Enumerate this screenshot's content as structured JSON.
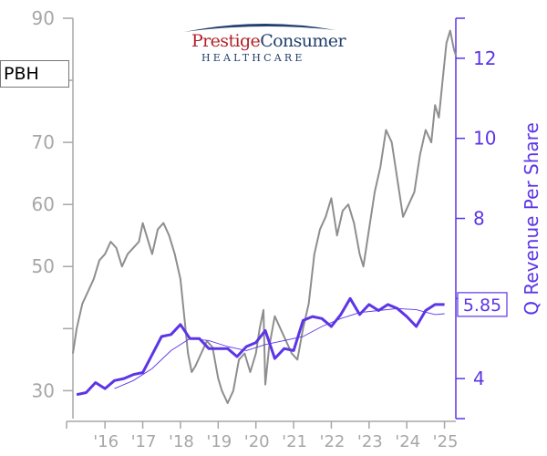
{
  "ticker": "PBH",
  "logo": {
    "name_part1": "Prestige",
    "name_part2": "Consumer",
    "subtitle": "HEALTHCARE"
  },
  "colors": {
    "price": "#8e8e8e",
    "revenue": "#5c35e6",
    "revenue_trend": "#5c35e6",
    "left_axis": "#a7a7a7",
    "bottom_axis": "#a7a7a7",
    "logo_red": "#b1232a",
    "logo_blue": "#23406e"
  },
  "chart_data": {
    "type": "line",
    "x_tick_labels": [
      "'16",
      "'17",
      "'18",
      "'19",
      "'20",
      "'21",
      "'22",
      "'23",
      "'24",
      "'25"
    ],
    "xlim": [
      2015.15,
      2025.3
    ],
    "left_axis": {
      "ticks": [
        30,
        40,
        50,
        60,
        70,
        80,
        90
      ],
      "labels": [
        "30",
        "",
        "50",
        "60",
        "70",
        "",
        "90"
      ],
      "ylim": [
        25.5,
        90
      ]
    },
    "right_axis": {
      "label": "Q Revenue Per Share",
      "ticks": [
        4,
        6,
        8,
        10,
        12
      ],
      "labels": [
        "4",
        "",
        "8",
        "10",
        "12"
      ],
      "ylim": [
        3.0,
        13.0
      ],
      "last_value_label": "5.85"
    },
    "series": [
      {
        "axis": "left",
        "x": [
          2015.15,
          2015.25,
          2015.4,
          2015.55,
          2015.7,
          2015.85,
          2016.0,
          2016.15,
          2016.3,
          2016.45,
          2016.6,
          2016.75,
          2016.9,
          2017.0,
          2017.1,
          2017.25,
          2017.4,
          2017.55,
          2017.7,
          2017.85,
          2018.0,
          2018.1,
          2018.2,
          2018.3,
          2018.4,
          2018.55,
          2018.7,
          2018.85,
          2019.0,
          2019.1,
          2019.25,
          2019.4,
          2019.55,
          2019.7,
          2019.85,
          2020.0,
          2020.1,
          2020.2,
          2020.25,
          2020.35,
          2020.5,
          2020.65,
          2020.8,
          2020.95,
          2021.1,
          2021.25,
          2021.4,
          2021.55,
          2021.7,
          2021.85,
          2022.0,
          2022.15,
          2022.3,
          2022.45,
          2022.6,
          2022.75,
          2022.85,
          2023.0,
          2023.15,
          2023.3,
          2023.45,
          2023.6,
          2023.75,
          2023.9,
          2024.05,
          2024.2,
          2024.35,
          2024.5,
          2024.65,
          2024.75,
          2024.85,
          2024.95,
          2025.05,
          2025.15,
          2025.25,
          2025.3
        ],
        "values": [
          36,
          40,
          44,
          46,
          48,
          51,
          52,
          54,
          53,
          50,
          52,
          53,
          54,
          57,
          55,
          52,
          56,
          57,
          55,
          52,
          48,
          42,
          36,
          33,
          34,
          36,
          38,
          37,
          32,
          30,
          28,
          30,
          35,
          36,
          33,
          36,
          40,
          43,
          31,
          37,
          42,
          40,
          38,
          36,
          35,
          40,
          44,
          52,
          56,
          58,
          61,
          55,
          59,
          60,
          57,
          52,
          50,
          56,
          62,
          66,
          72,
          70,
          64,
          58,
          60,
          62,
          68,
          72,
          70,
          76,
          74,
          80,
          86,
          88,
          85,
          84
        ]
      },
      {
        "axis": "right",
        "x": [
          2015.25,
          2015.5,
          2015.75,
          2016.0,
          2016.25,
          2016.5,
          2016.75,
          2017.0,
          2017.25,
          2017.5,
          2017.75,
          2018.0,
          2018.25,
          2018.5,
          2018.75,
          2019.0,
          2019.25,
          2019.5,
          2019.75,
          2020.0,
          2020.25,
          2020.5,
          2020.75,
          2021.0,
          2021.25,
          2021.5,
          2021.75,
          2022.0,
          2022.25,
          2022.5,
          2022.75,
          2023.0,
          2023.25,
          2023.5,
          2023.75,
          2024.0,
          2024.25,
          2024.5,
          2024.75,
          2025.0
        ],
        "values": [
          3.6,
          3.65,
          3.9,
          3.75,
          3.95,
          4.0,
          4.1,
          4.15,
          4.6,
          5.05,
          5.1,
          5.35,
          5.0,
          5.0,
          4.75,
          4.75,
          4.75,
          4.55,
          4.8,
          4.9,
          5.2,
          4.5,
          4.75,
          4.7,
          5.45,
          5.55,
          5.5,
          5.3,
          5.6,
          6.0,
          5.6,
          5.85,
          5.7,
          5.85,
          5.75,
          5.55,
          5.3,
          5.7,
          5.85,
          5.85
        ]
      },
      {
        "axis": "right",
        "x": [
          2016.25,
          2016.75,
          2017.25,
          2017.75,
          2018.25,
          2018.75,
          2019.25,
          2019.75,
          2020.25,
          2020.75,
          2021.25,
          2021.75,
          2022.25,
          2022.75,
          2023.25,
          2023.75,
          2024.25,
          2024.75,
          2025.0
        ],
        "values": [
          3.75,
          3.95,
          4.25,
          4.7,
          5.0,
          4.95,
          4.8,
          4.7,
          4.85,
          4.95,
          5.05,
          5.3,
          5.5,
          5.65,
          5.7,
          5.75,
          5.72,
          5.6,
          5.62
        ]
      }
    ]
  }
}
